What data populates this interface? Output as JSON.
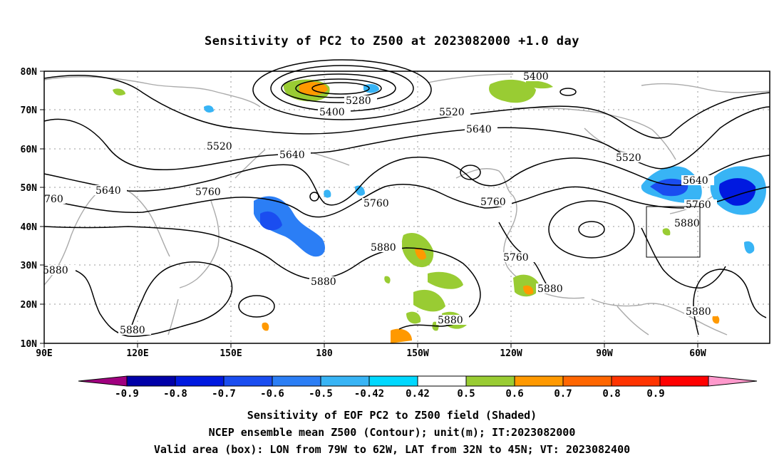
{
  "title": "Sensitivity of PC2 to Z500 at 2023082000 +1.0 day",
  "map": {
    "lat_labels": [
      "80N",
      "70N",
      "60N",
      "50N",
      "40N",
      "30N",
      "20N",
      "10N"
    ],
    "lon_labels": [
      "90E",
      "120E",
      "150E",
      "180",
      "150W",
      "120W",
      "90W",
      "60W"
    ],
    "contour_labels": [
      "5400",
      "5280",
      "5400",
      "5520",
      "5640",
      "5760",
      "5880"
    ]
  },
  "colorbar": {
    "labels": [
      "-0.9",
      "-0.8",
      "-0.7",
      "-0.6",
      "-0.5",
      "-0.42",
      "0.42",
      "0.5",
      "0.6",
      "0.7",
      "0.8",
      "0.9"
    ],
    "colors": [
      "#a0007f",
      "#0000a8",
      "#0019e0",
      "#1a4df0",
      "#2b7ef5",
      "#38b4f5",
      "#00d8ff",
      "#ffffff",
      "#99cc33",
      "#ff9900",
      "#ff6600",
      "#ff3300",
      "#ff0000",
      "#ff99cc"
    ]
  },
  "footer": {
    "line1": "Sensitivity of EOF PC2 to Z500 field (Shaded)",
    "line2": "NCEP ensemble mean Z500 (Contour); unit(m); IT:2023082000",
    "line3": "Valid area (box): LON from 79W to 62W, LAT from 32N to 45N; VT: 2023082400"
  }
}
